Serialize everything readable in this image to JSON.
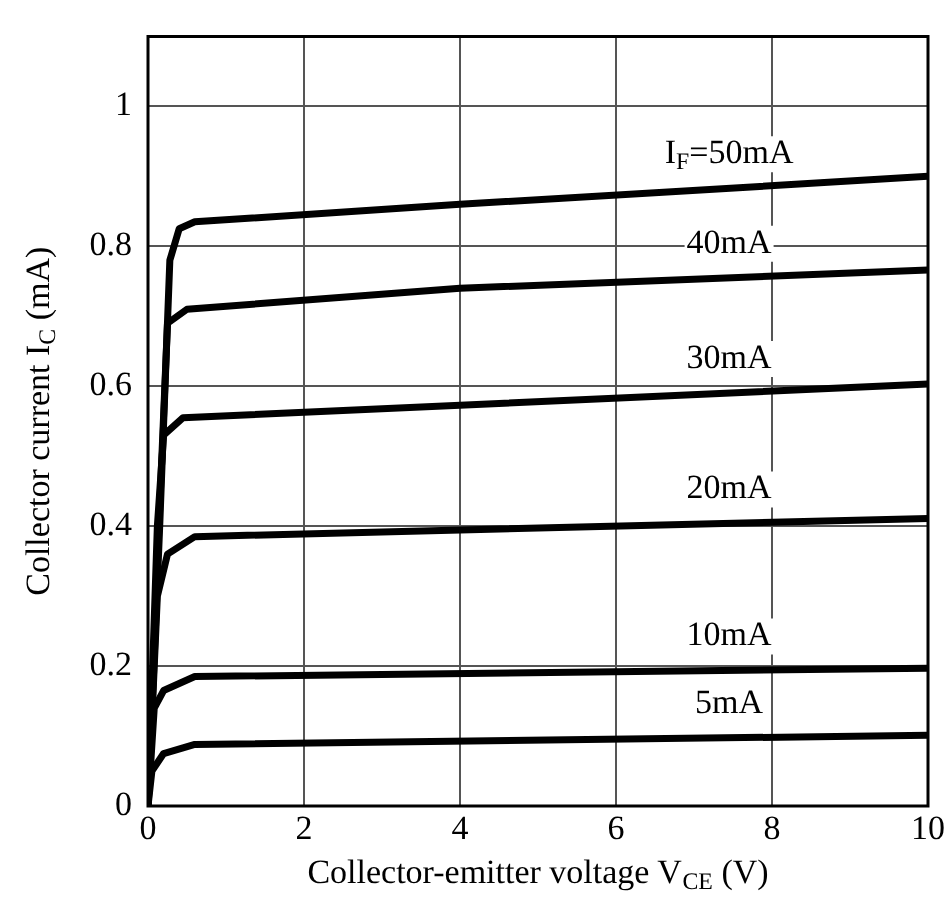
{
  "chart_data": {
    "type": "line",
    "xlabel": "Collector-emitter voltage V$_{CE}$ (V)",
    "ylabel": "Collector current I$_{C}$ (mA)",
    "xlim": [
      0,
      10
    ],
    "xticks": [
      0,
      2,
      4,
      6,
      8,
      10
    ],
    "ylim": [
      0,
      1.1
    ],
    "yticks": [
      0,
      0.2,
      0.4,
      0.6,
      0.8,
      1
    ],
    "grid": true,
    "legend": false,
    "marker": "none",
    "line_style": "solid",
    "series": [
      {
        "name": "I$_{F}$=50mA",
        "color": "#000000",
        "x": [
          0,
          0.15,
          0.28,
          0.4,
          0.6,
          4,
          10
        ],
        "values": [
          0,
          0.4,
          0.78,
          0.825,
          0.835,
          0.86,
          0.9
        ]
      },
      {
        "name": "40mA",
        "color": "#000000",
        "x": [
          0,
          0.14,
          0.25,
          0.5,
          4,
          10
        ],
        "values": [
          0,
          0.4,
          0.69,
          0.71,
          0.74,
          0.766
        ]
      },
      {
        "name": "30mA",
        "color": "#000000",
        "x": [
          0,
          0.12,
          0.2,
          0.45,
          10
        ],
        "values": [
          0,
          0.4,
          0.53,
          0.555,
          0.603
        ]
      },
      {
        "name": "20mA",
        "color": "#000000",
        "x": [
          0,
          0.12,
          0.25,
          0.6,
          10
        ],
        "values": [
          0,
          0.3,
          0.36,
          0.385,
          0.411
        ]
      },
      {
        "name": "10mA",
        "color": "#000000",
        "x": [
          0,
          0.08,
          0.2,
          0.6,
          10
        ],
        "values": [
          0,
          0.14,
          0.165,
          0.185,
          0.197
        ]
      },
      {
        "name": "5mA",
        "color": "#000000",
        "x": [
          0,
          0.05,
          0.2,
          0.6,
          10
        ],
        "values": [
          0,
          0.05,
          0.075,
          0.088,
          0.101
        ]
      }
    ]
  }
}
